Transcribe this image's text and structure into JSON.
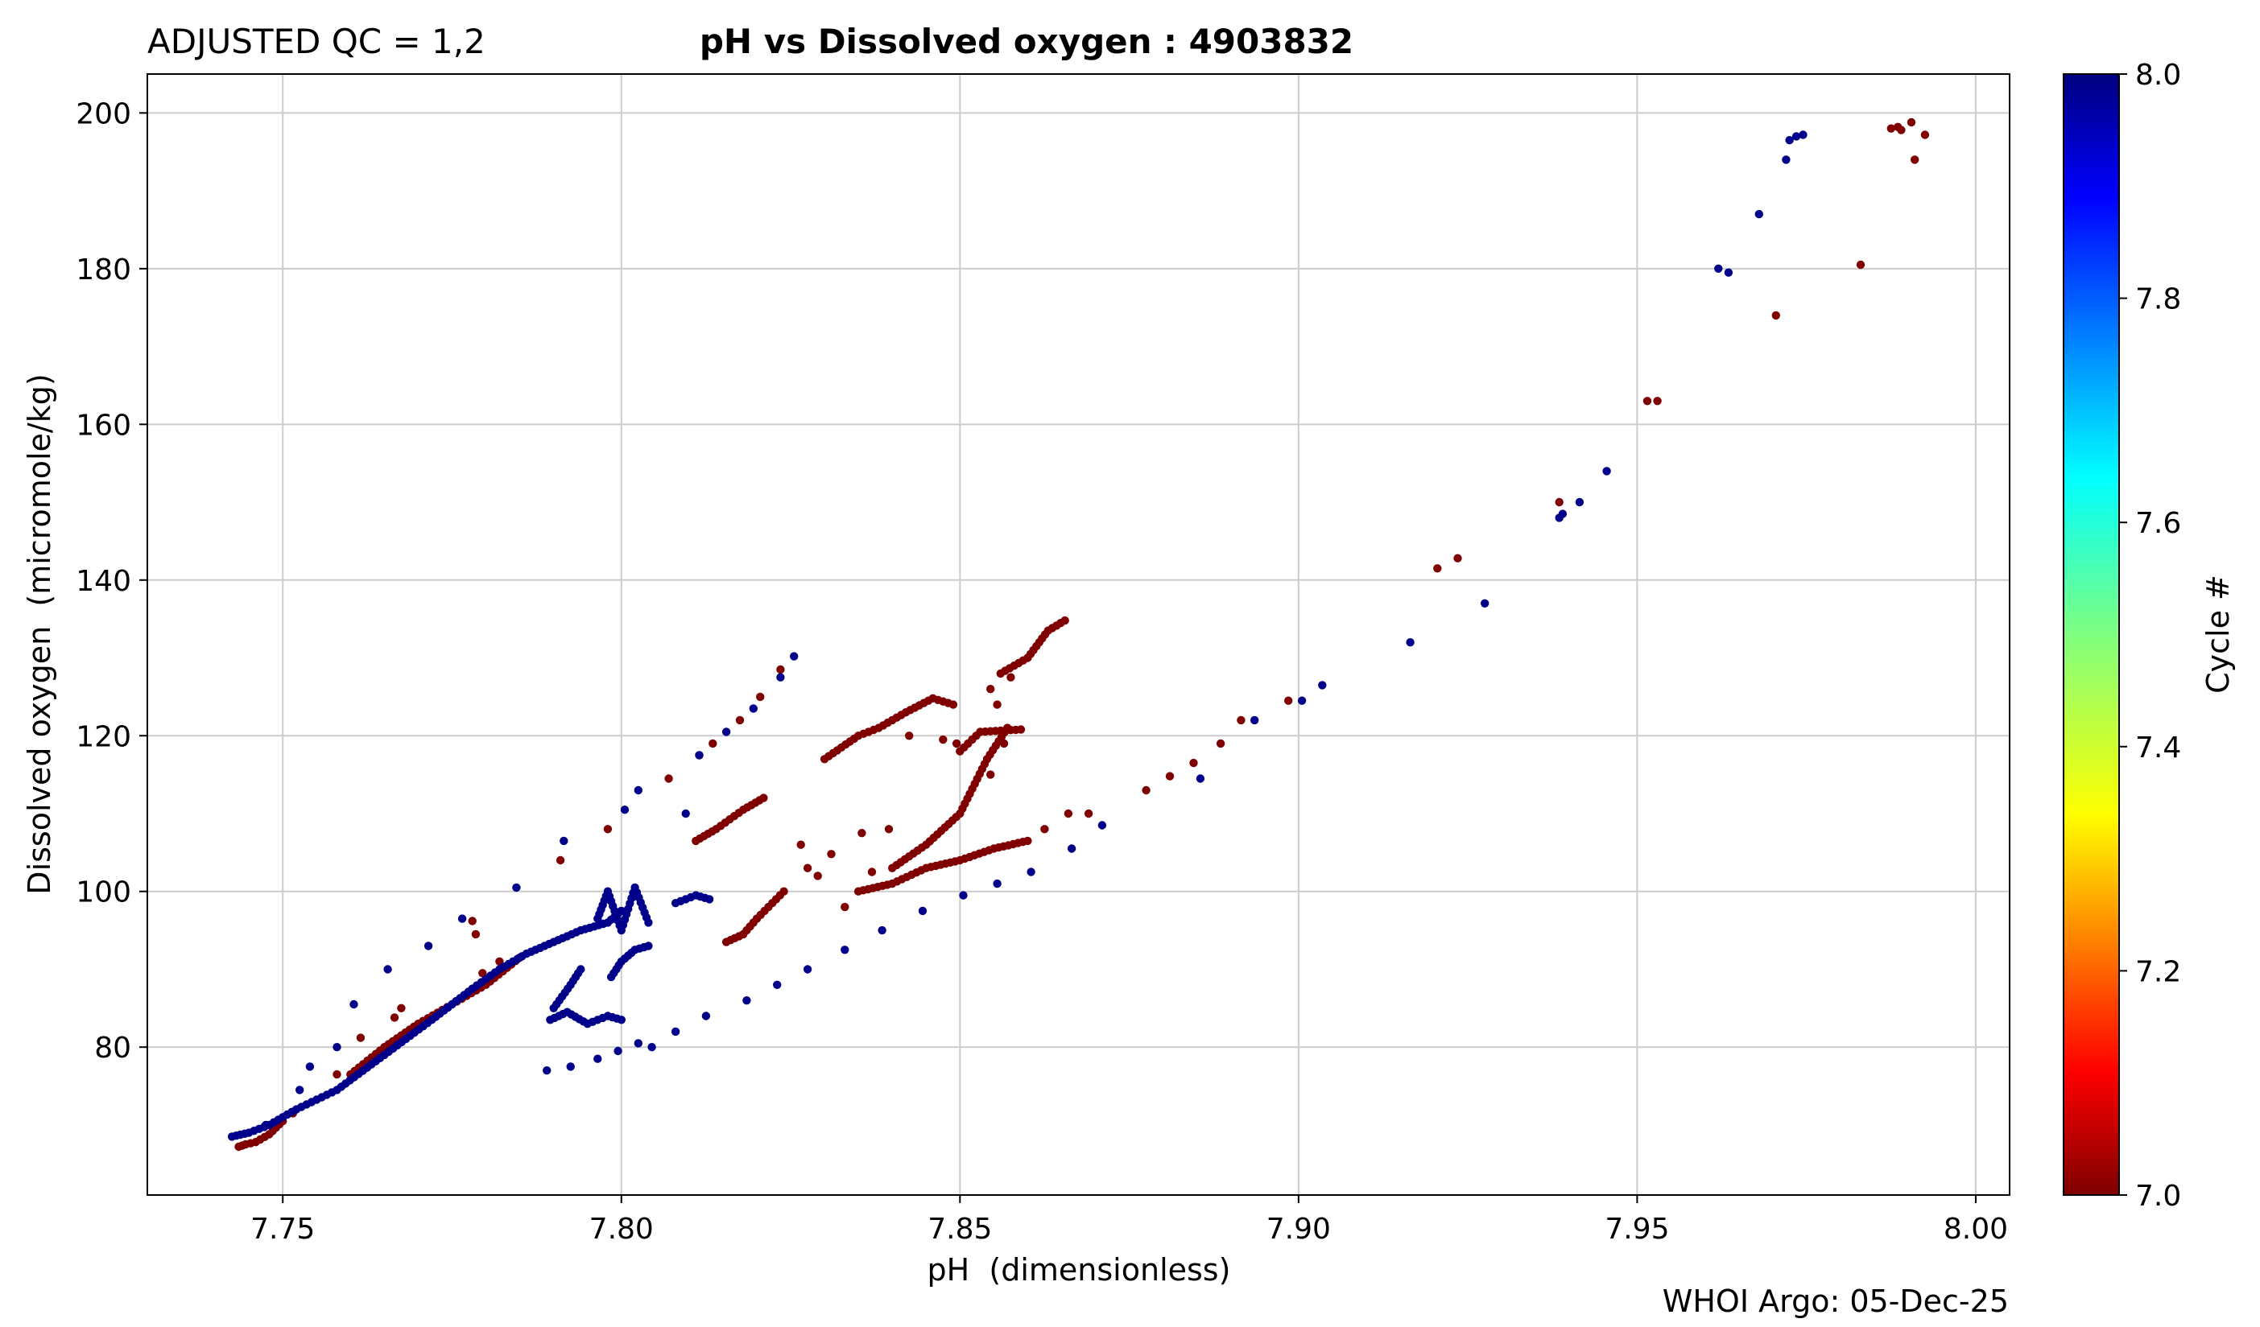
{
  "header": {
    "qc_label": "ADJUSTED QC = 1,2",
    "title": "pH vs Dissolved oxygen : 4903832"
  },
  "footer": {
    "credit": "WHOI Argo: 05-Dec-25"
  },
  "chart_data": {
    "type": "scatter",
    "title": "pH vs Dissolved oxygen : 4903832",
    "xlabel": "pH  (dimensionless)",
    "ylabel": "Dissolved oxygen  (micromole/kg)",
    "xlim": [
      7.73,
      8.005
    ],
    "ylim": [
      61,
      205
    ],
    "xticks": [
      7.75,
      7.8,
      7.85,
      7.9,
      7.95,
      8.0
    ],
    "xtick_labels": [
      "7.75",
      "7.80",
      "7.85",
      "7.90",
      "7.95",
      "8.00"
    ],
    "yticks": [
      80,
      100,
      120,
      140,
      160,
      180,
      200
    ],
    "ytick_labels": [
      "80",
      "100",
      "120",
      "140",
      "160",
      "180",
      "200"
    ],
    "grid": true,
    "colorbar": {
      "label": "Cycle #",
      "min": 7.0,
      "max": 8.0,
      "ticks": [
        7.0,
        7.2,
        7.4,
        7.6,
        7.8,
        8.0
      ],
      "tick_labels": [
        "7.0",
        "7.2",
        "7.4",
        "7.6",
        "7.8",
        "8.0"
      ],
      "colormap": "jet",
      "colors": [
        "#7f0000",
        "#ff0000",
        "#ff7f00",
        "#ffff00",
        "#7fff7f",
        "#00ffff",
        "#007fff",
        "#0000ff",
        "#00007f"
      ]
    },
    "series": [
      {
        "cycle": 7,
        "color": "#800000",
        "lines": [
          [
            [
              7.7435,
              67.2
            ],
            [
              7.7445,
              67.5
            ],
            [
              7.746,
              67.8
            ],
            [
              7.748,
              68.8
            ],
            [
              7.75,
              70.5
            ]
          ],
          [
            [
              7.76,
              76.5
            ],
            [
              7.765,
              80.0
            ],
            [
              7.77,
              83.0
            ],
            [
              7.78,
              88.0
            ],
            [
              7.785,
              91.5
            ]
          ],
          [
            [
              7.8155,
              93.5
            ],
            [
              7.818,
              94.5
            ],
            [
              7.82,
              96.5
            ],
            [
              7.824,
              100.0
            ]
          ],
          [
            [
              7.811,
              106.5
            ],
            [
              7.814,
              108.0
            ],
            [
              7.818,
              110.5
            ],
            [
              7.821,
              112.0
            ]
          ],
          [
            [
              7.83,
              117.0
            ],
            [
              7.835,
              120.0
            ],
            [
              7.838,
              121.0
            ],
            [
              7.842,
              123.0
            ],
            [
              7.846,
              124.8
            ],
            [
              7.849,
              124.0
            ]
          ],
          [
            [
              7.84,
              103.0
            ],
            [
              7.845,
              106.0
            ],
            [
              7.85,
              110.0
            ],
            [
              7.854,
              117.0
            ],
            [
              7.857,
              121.0
            ]
          ],
          [
            [
              7.85,
              118.0
            ],
            [
              7.853,
              120.5
            ],
            [
              7.859,
              120.8
            ]
          ],
          [
            [
              7.856,
              128.0
            ],
            [
              7.86,
              130.0
            ],
            [
              7.863,
              133.5
            ],
            [
              7.8655,
              134.8
            ]
          ],
          [
            [
              7.835,
              100.0
            ],
            [
              7.84,
              101.0
            ],
            [
              7.845,
              103.0
            ],
            [
              7.85,
              104.0
            ],
            [
              7.855,
              105.5
            ],
            [
              7.86,
              106.5
            ]
          ]
        ],
        "points": [
          [
            7.7515,
            71.5
          ],
          [
            7.758,
            76.5
          ],
          [
            7.7615,
            81.2
          ],
          [
            7.7675,
            85.0
          ],
          [
            7.7665,
            83.8
          ],
          [
            7.7795,
            89.5
          ],
          [
            7.7785,
            94.5
          ],
          [
            7.778,
            96.2
          ],
          [
            7.782,
            91.0
          ],
          [
            7.791,
            104.0
          ],
          [
            7.798,
            108.0
          ],
          [
            7.807,
            114.5
          ],
          [
            7.8115,
            117.5
          ],
          [
            7.8135,
            119.0
          ],
          [
            7.8175,
            122.0
          ],
          [
            7.8205,
            125.0
          ],
          [
            7.8235,
            128.5
          ],
          [
            7.8275,
            103.0
          ],
          [
            7.831,
            104.8
          ],
          [
            7.8355,
            107.5
          ],
          [
            7.8395,
            108.0
          ],
          [
            7.8265,
            106.0
          ],
          [
            7.829,
            102.0
          ],
          [
            7.833,
            98.0
          ],
          [
            7.837,
            102.5
          ],
          [
            7.8425,
            120.0
          ],
          [
            7.8475,
            119.5
          ],
          [
            7.8495,
            119.0
          ],
          [
            7.8545,
            126.0
          ],
          [
            7.8555,
            124.0
          ],
          [
            7.8575,
            127.5
          ],
          [
            7.8545,
            115.0
          ],
          [
            7.8565,
            119.0
          ],
          [
            7.8625,
            108.0
          ],
          [
            7.866,
            110.0
          ],
          [
            7.869,
            110.0
          ],
          [
            7.8775,
            113.0
          ],
          [
            7.881,
            114.8
          ],
          [
            7.8845,
            116.5
          ],
          [
            7.8885,
            119.0
          ],
          [
            7.8915,
            122.0
          ],
          [
            7.8985,
            124.5
          ],
          [
            7.9205,
            141.5
          ],
          [
            7.9235,
            142.8
          ],
          [
            7.9385,
            150.0
          ],
          [
            7.9515,
            163.0
          ],
          [
            7.953,
            163.0
          ],
          [
            7.9705,
            174.0
          ],
          [
            7.983,
            180.5
          ],
          [
            7.9875,
            198.0
          ],
          [
            7.9885,
            198.2
          ],
          [
            7.989,
            197.8
          ],
          [
            7.9905,
            198.8
          ],
          [
            7.991,
            194.0
          ],
          [
            7.9925,
            197.2
          ]
        ]
      },
      {
        "cycle": 8,
        "color": "#00008b",
        "lines": [
          [
            [
              7.7425,
              68.5
            ],
            [
              7.745,
              69.0
            ],
            [
              7.748,
              70.0
            ],
            [
              7.752,
              72.0
            ],
            [
              7.758,
              74.5
            ],
            [
              7.765,
              79.0
            ],
            [
              7.772,
              83.5
            ],
            [
              7.778,
              87.5
            ],
            [
              7.782,
              90.0
            ],
            [
              7.786,
              92.0
            ],
            [
              7.79,
              93.5
            ],
            [
              7.794,
              95.0
            ],
            [
              7.798,
              96.0
            ],
            [
              7.8,
              97.5
            ]
          ],
          [
            [
              7.7965,
              96.5
            ],
            [
              7.798,
              100.0
            ],
            [
              7.8,
              95.0
            ],
            [
              7.802,
              100.5
            ],
            [
              7.804,
              96.0
            ]
          ],
          [
            [
              7.7985,
              89.0
            ],
            [
              7.8,
              91.0
            ],
            [
              7.802,
              92.5
            ],
            [
              7.804,
              93.0
            ]
          ],
          [
            [
              7.7895,
              83.5
            ],
            [
              7.792,
              84.5
            ],
            [
              7.795,
              83.0
            ],
            [
              7.798,
              84.0
            ],
            [
              7.8,
              83.5
            ]
          ],
          [
            [
              7.79,
              85.0
            ],
            [
              7.7925,
              88.0
            ],
            [
              7.794,
              90.0
            ]
          ],
          [
            [
              7.808,
              98.5
            ],
            [
              7.811,
              99.5
            ],
            [
              7.813,
              99.0
            ]
          ]
        ],
        "points": [
          [
            7.7475,
            70.0
          ],
          [
            7.7525,
            74.5
          ],
          [
            7.754,
            77.5
          ],
          [
            7.758,
            80.0
          ],
          [
            7.7605,
            85.5
          ],
          [
            7.7655,
            90.0
          ],
          [
            7.7715,
            93.0
          ],
          [
            7.7765,
            96.5
          ],
          [
            7.7845,
            100.5
          ],
          [
            7.7915,
            106.5
          ],
          [
            7.8005,
            110.5
          ],
          [
            7.8025,
            113.0
          ],
          [
            7.8095,
            110.0
          ],
          [
            7.8115,
            117.5
          ],
          [
            7.8155,
            120.5
          ],
          [
            7.8195,
            123.5
          ],
          [
            7.8235,
            127.5
          ],
          [
            7.8255,
            130.2
          ],
          [
            7.789,
            77.0
          ],
          [
            7.7925,
            77.5
          ],
          [
            7.7965,
            78.5
          ],
          [
            7.7995,
            79.5
          ],
          [
            7.8025,
            80.5
          ],
          [
            7.8045,
            80.0
          ],
          [
            7.808,
            82.0
          ],
          [
            7.8125,
            84.0
          ],
          [
            7.8185,
            86.0
          ],
          [
            7.823,
            88.0
          ],
          [
            7.8275,
            90.0
          ],
          [
            7.833,
            92.5
          ],
          [
            7.8385,
            95.0
          ],
          [
            7.8445,
            97.5
          ],
          [
            7.8505,
            99.5
          ],
          [
            7.8555,
            101.0
          ],
          [
            7.8605,
            102.5
          ],
          [
            7.8665,
            105.5
          ],
          [
            7.871,
            108.5
          ],
          [
            7.8855,
            114.5
          ],
          [
            7.8935,
            122.0
          ],
          [
            7.9005,
            124.5
          ],
          [
            7.9035,
            126.5
          ],
          [
            7.9165,
            132.0
          ],
          [
            7.9275,
            137.0
          ],
          [
            7.9385,
            148.0
          ],
          [
            7.939,
            148.5
          ],
          [
            7.9415,
            150.0
          ],
          [
            7.9455,
            154.0
          ],
          [
            7.962,
            180.0
          ],
          [
            7.9635,
            179.5
          ],
          [
            7.968,
            187.0
          ],
          [
            7.972,
            194.0
          ],
          [
            7.9725,
            196.5
          ],
          [
            7.9735,
            197.0
          ],
          [
            7.9745,
            197.2
          ]
        ]
      }
    ]
  }
}
